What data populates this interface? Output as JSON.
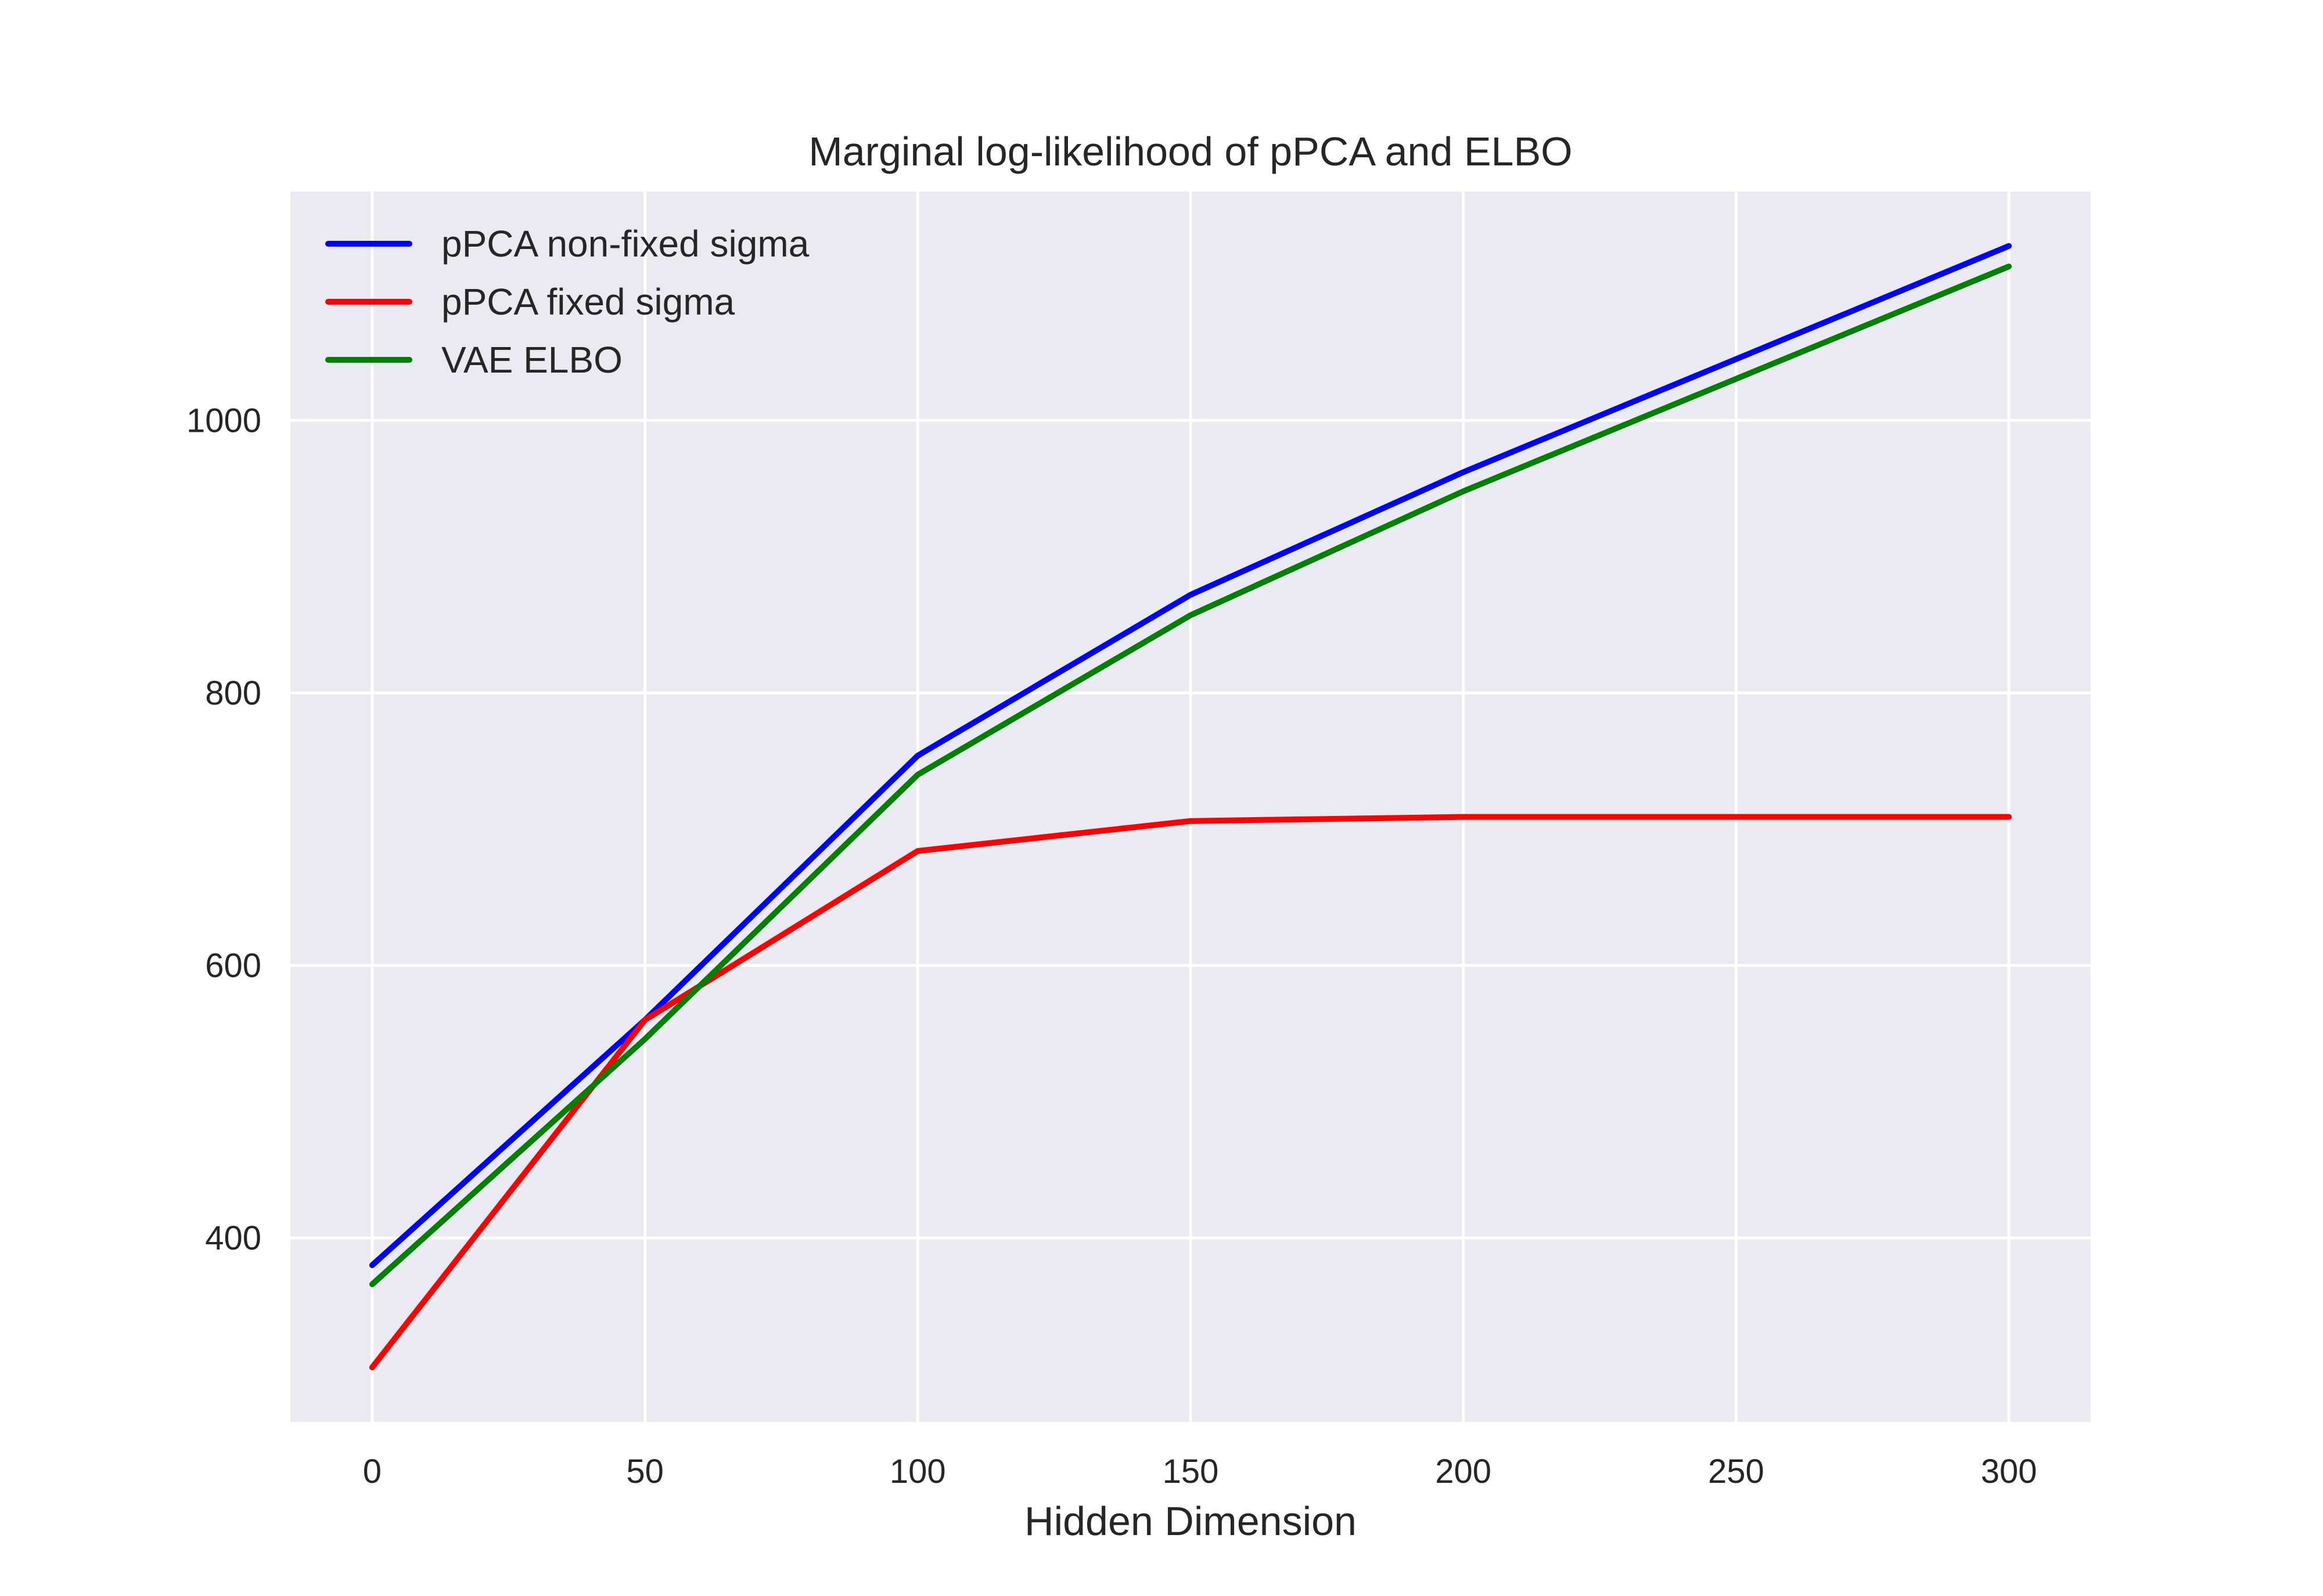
{
  "chart_data": {
    "type": "line",
    "title": "Marginal log-likelihood of pPCA and ELBO",
    "xlabel": "Hidden Dimension",
    "ylabel": "",
    "x": [
      0,
      50,
      100,
      150,
      200,
      300
    ],
    "xticks": [
      0,
      50,
      100,
      150,
      200,
      250,
      300
    ],
    "xtick_labels": [
      "0",
      "50",
      "100",
      "150",
      "200",
      "250",
      "300"
    ],
    "yticks": [
      400,
      600,
      800,
      1000
    ],
    "ytick_labels": [
      "400",
      "600",
      "800",
      "1000"
    ],
    "xlim": [
      -15,
      315
    ],
    "ylim": [
      265,
      1168
    ],
    "grid": true,
    "legend_position": "upper-left",
    "background_color": "#EAEAF2",
    "series": [
      {
        "name": "pPCA non-fixed sigma",
        "color": "#0000FF",
        "values": [
          380,
          560,
          754,
          872,
          962,
          1128
        ]
      },
      {
        "name": "pPCA fixed sigma",
        "color": "#FF0000",
        "values": [
          305,
          560,
          684,
          706,
          709,
          709
        ]
      },
      {
        "name": "VAE ELBO",
        "color": "#008000",
        "values": [
          366,
          546,
          740,
          857,
          948,
          1113
        ]
      }
    ]
  }
}
